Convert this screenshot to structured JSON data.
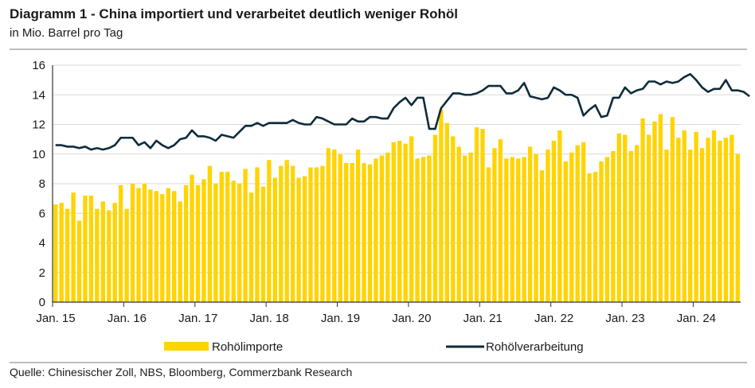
{
  "header": {
    "title": "Diagramm 1 - China importiert und verarbeitet deutlich weniger Rohöl",
    "subtitle": "in Mio. Barrel pro Tag"
  },
  "footer": {
    "source": "Quelle: Chinesischer Zoll, NBS, Bloomberg, Commerzbank Research"
  },
  "chart_data": {
    "type": "bar",
    "ylim": [
      0,
      16
    ],
    "yticks": [
      0,
      2,
      4,
      6,
      8,
      10,
      12,
      14,
      16
    ],
    "xtick_labels": [
      "Jan. 15",
      "Jan. 16",
      "Jan. 17",
      "Jan. 18",
      "Jan. 19",
      "Jan. 20",
      "Jan. 21",
      "Jan. 22",
      "Jan. 23",
      "Jan. 24"
    ],
    "period_start": "Jan. 15",
    "grid": "horizontal",
    "legend_position": "bottom",
    "series": [
      {
        "name": "Rohölimporte",
        "type": "bar",
        "color": "#ffd400",
        "values": [
          6.6,
          6.7,
          6.3,
          7.4,
          5.5,
          7.2,
          7.2,
          6.3,
          6.8,
          6.2,
          6.7,
          7.9,
          6.3,
          8.0,
          7.7,
          8.0,
          7.6,
          7.5,
          7.3,
          7.7,
          7.5,
          6.8,
          7.9,
          8.6,
          7.9,
          8.3,
          9.2,
          8.0,
          8.8,
          8.8,
          8.2,
          8.0,
          9.0,
          7.4,
          9.1,
          7.8,
          9.6,
          8.4,
          9.2,
          9.6,
          9.2,
          8.4,
          8.5,
          9.1,
          9.1,
          9.2,
          10.4,
          10.3,
          10.0,
          9.4,
          9.4,
          10.3,
          9.4,
          9.3,
          9.7,
          9.9,
          10.1,
          10.8,
          10.9,
          10.7,
          11.2,
          9.7,
          9.8,
          9.9,
          11.3,
          13.0,
          12.1,
          11.2,
          10.5,
          9.9,
          10.1,
          11.8,
          11.7,
          9.1,
          10.4,
          11.0,
          9.7,
          9.8,
          9.7,
          9.8,
          10.5,
          10.0,
          8.9,
          10.3,
          10.9,
          11.6,
          9.5,
          10.1,
          10.6,
          10.8,
          8.7,
          8.8,
          9.5,
          9.8,
          10.2,
          11.4,
          11.3,
          10.2,
          10.6,
          12.4,
          11.3,
          12.2,
          12.7,
          10.3,
          12.5,
          11.1,
          11.6,
          10.3,
          11.5,
          10.4,
          11.1,
          11.6,
          10.9,
          11.1,
          11.3,
          10.0
        ]
      },
      {
        "name": "Rohölverarbeitung",
        "type": "line",
        "color": "#0d2c3a",
        "values": [
          10.6,
          10.6,
          10.5,
          10.5,
          10.4,
          10.5,
          10.3,
          10.4,
          10.3,
          10.4,
          10.6,
          11.1,
          11.1,
          11.1,
          10.6,
          10.8,
          10.4,
          10.9,
          10.6,
          10.4,
          10.6,
          11.0,
          11.1,
          11.6,
          11.2,
          11.2,
          11.1,
          10.9,
          11.3,
          11.2,
          11.1,
          11.5,
          11.9,
          11.9,
          12.1,
          11.9,
          12.1,
          12.1,
          12.1,
          12.1,
          12.3,
          12.1,
          12.0,
          12.0,
          12.5,
          12.4,
          12.2,
          12.0,
          12.0,
          12.0,
          12.4,
          12.2,
          12.2,
          12.5,
          12.5,
          12.4,
          12.4,
          13.1,
          13.5,
          13.8,
          13.3,
          13.8,
          13.8,
          11.7,
          11.7,
          13.1,
          13.6,
          14.1,
          14.1,
          14.0,
          14.0,
          14.1,
          14.3,
          14.6,
          14.6,
          14.6,
          14.1,
          14.1,
          14.3,
          14.8,
          13.9,
          13.8,
          13.7,
          13.8,
          14.5,
          14.3,
          14.0,
          14.0,
          13.8,
          12.6,
          13.0,
          13.3,
          12.5,
          12.6,
          13.8,
          13.8,
          14.5,
          14.1,
          14.3,
          14.4,
          14.9,
          14.9,
          14.7,
          14.9,
          14.8,
          14.9,
          15.2,
          15.4,
          15.0,
          14.5,
          14.2,
          14.4,
          14.4,
          15.0,
          14.3,
          14.3,
          14.2,
          13.9
        ]
      }
    ]
  }
}
